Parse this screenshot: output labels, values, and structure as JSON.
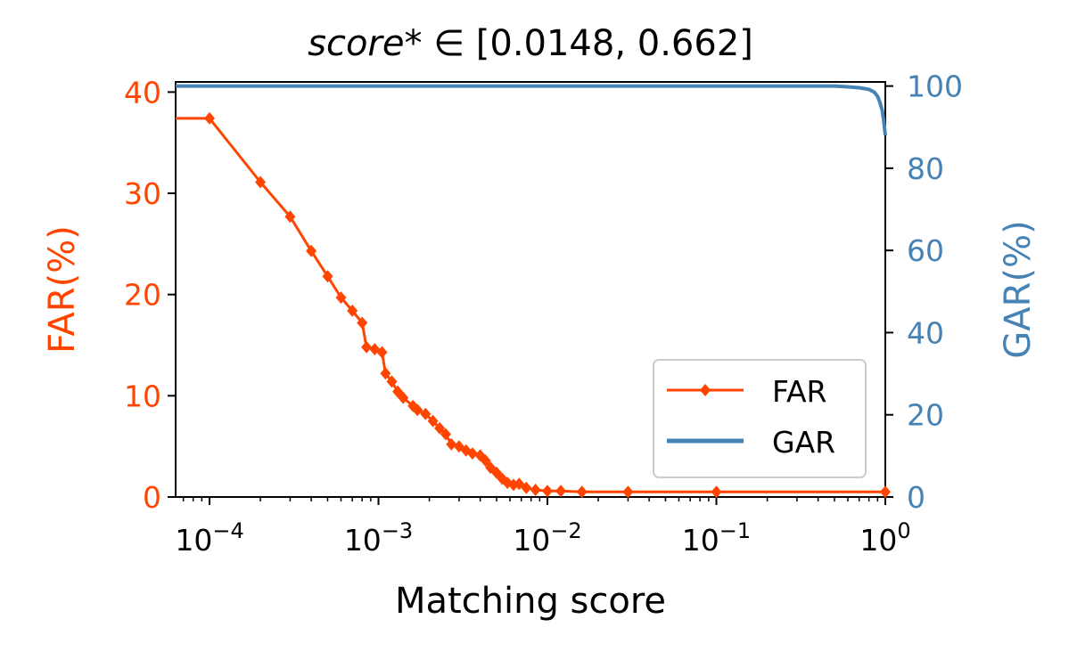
{
  "chart_data": {
    "type": "line",
    "title_prefix": "score",
    "title_suffix": "* ∈ [0.0148, 0.662]",
    "xlabel": "Matching score",
    "ylabel_left": "FAR(%)",
    "ylabel_right": "GAR(%)",
    "x_scale": "log",
    "xlim": [
      6.3e-05,
      1
    ],
    "ylim_left": [
      0,
      41
    ],
    "ylim_right": [
      0,
      101
    ],
    "x_ticks": [
      {
        "value": 0.0001,
        "base": "10",
        "exp": "−4"
      },
      {
        "value": 0.001,
        "base": "10",
        "exp": "−3"
      },
      {
        "value": 0.01,
        "base": "10",
        "exp": "−2"
      },
      {
        "value": 0.1,
        "base": "10",
        "exp": "−1"
      },
      {
        "value": 1,
        "base": "10",
        "exp": "0"
      }
    ],
    "y_ticks_left": [
      {
        "value": 0,
        "label": "0"
      },
      {
        "value": 10,
        "label": "10"
      },
      {
        "value": 20,
        "label": "20"
      },
      {
        "value": 30,
        "label": "30"
      },
      {
        "value": 40,
        "label": "40"
      }
    ],
    "y_ticks_right": [
      {
        "value": 0,
        "label": "0"
      },
      {
        "value": 20,
        "label": "20"
      },
      {
        "value": 40,
        "label": "40"
      },
      {
        "value": 60,
        "label": "60"
      },
      {
        "value": 80,
        "label": "80"
      },
      {
        "value": 100,
        "label": "100"
      }
    ],
    "legend_position": "lower-right",
    "series": [
      {
        "name": "FAR",
        "axis": "left",
        "color": "#ff4500",
        "marker": "diamond",
        "points": [
          [
            6.3e-05,
            37.4
          ],
          [
            0.0001,
            37.4
          ],
          [
            0.0002,
            31.1
          ],
          [
            0.0003,
            27.7
          ],
          [
            0.0004,
            24.3
          ],
          [
            0.0005,
            21.8
          ],
          [
            0.0006,
            19.7
          ],
          [
            0.0007,
            18.4
          ],
          [
            0.0008,
            17.2
          ],
          [
            0.00085,
            14.8
          ],
          [
            0.00095,
            14.6
          ],
          [
            0.00105,
            14.3
          ],
          [
            0.0011,
            12.2
          ],
          [
            0.0012,
            11.4
          ],
          [
            0.0013,
            10.4
          ],
          [
            0.0014,
            9.8
          ],
          [
            0.0016,
            9.0
          ],
          [
            0.0017,
            8.6
          ],
          [
            0.0019,
            8.2
          ],
          [
            0.0021,
            7.5
          ],
          [
            0.0023,
            6.8
          ],
          [
            0.0025,
            6.2
          ],
          [
            0.0027,
            5.2
          ],
          [
            0.003,
            5.0
          ],
          [
            0.0033,
            4.6
          ],
          [
            0.0036,
            4.3
          ],
          [
            0.004,
            4.1
          ],
          [
            0.0043,
            3.6
          ],
          [
            0.0046,
            2.9
          ],
          [
            0.005,
            2.4
          ],
          [
            0.0054,
            1.8
          ],
          [
            0.0058,
            1.4
          ],
          [
            0.0063,
            1.2
          ],
          [
            0.0068,
            1.3
          ],
          [
            0.0075,
            0.9
          ],
          [
            0.0085,
            0.7
          ],
          [
            0.01,
            0.6
          ],
          [
            0.012,
            0.6
          ],
          [
            0.016,
            0.5
          ],
          [
            0.03,
            0.5
          ],
          [
            0.1,
            0.5
          ],
          [
            1,
            0.5
          ]
        ]
      },
      {
        "name": "GAR",
        "axis": "right",
        "color": "#4682b4",
        "marker": "none",
        "points": [
          [
            6.3e-05,
            100
          ],
          [
            0.5,
            100
          ],
          [
            0.6,
            99.8
          ],
          [
            0.7,
            99.6
          ],
          [
            0.8,
            99.2
          ],
          [
            0.86,
            98.5
          ],
          [
            0.9,
            97.5
          ],
          [
            0.93,
            96.0
          ],
          [
            0.96,
            94.0
          ],
          [
            0.98,
            91.5
          ],
          [
            1,
            88
          ]
        ]
      }
    ]
  }
}
